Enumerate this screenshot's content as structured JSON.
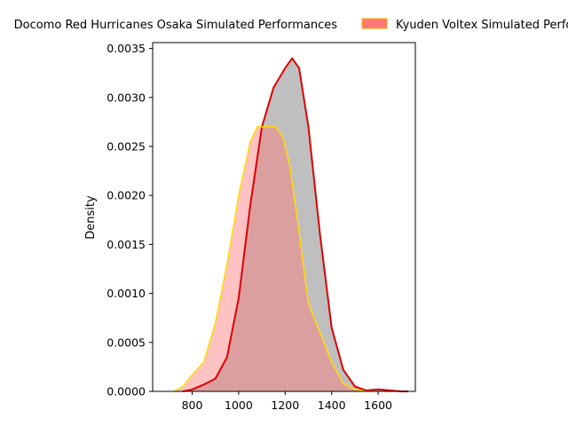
{
  "chart_data": {
    "type": "area",
    "xlabel": "",
    "ylabel": "Density",
    "xlim": [
      630,
      1760
    ],
    "ylim": [
      0,
      0.00356
    ],
    "xticks": [
      800,
      1000,
      1200,
      1400,
      1600
    ],
    "xtick_labels": [
      "800",
      "1000",
      "1200",
      "1400",
      "1600"
    ],
    "yticks": [
      0,
      0.0005,
      0.001,
      0.0015,
      0.002,
      0.0025,
      0.003,
      0.0035
    ],
    "ytick_labels": [
      "0.0000",
      "0.0005",
      "0.0010",
      "0.0015",
      "0.0020",
      "0.0025",
      "0.0030",
      "0.0035"
    ],
    "grid": false,
    "legend_position": "top (above plot)",
    "series": [
      {
        "name": "Docomo Red Hurricanes Osaka Simulated Performances",
        "fill_color": "#a9a9a9",
        "line_color": "#dd0000",
        "x": [
          760,
          800,
          850,
          900,
          950,
          1000,
          1050,
          1100,
          1150,
          1200,
          1230,
          1260,
          1300,
          1350,
          1400,
          1450,
          1500,
          1550,
          1600,
          1650,
          1700,
          1730
        ],
        "y": [
          0,
          2e-05,
          7e-05,
          0.00013,
          0.00035,
          0.00095,
          0.0019,
          0.0027,
          0.0031,
          0.0033,
          0.0034,
          0.0033,
          0.0027,
          0.0016,
          0.00065,
          0.00022,
          5e-05,
          1e-05,
          2e-05,
          1e-05,
          0,
          0
        ]
      },
      {
        "name": "Kyuden Voltex Simulated Performances",
        "fill_color": "#ff7777",
        "line_color": "#ffdd00",
        "x": [
          720,
          760,
          800,
          850,
          900,
          950,
          1000,
          1050,
          1080,
          1100,
          1130,
          1160,
          1190,
          1220,
          1250,
          1300,
          1350,
          1400,
          1450,
          1500,
          1550,
          1580
        ],
        "y": [
          0,
          5e-05,
          0.00017,
          0.0003,
          0.0007,
          0.0013,
          0.002,
          0.00255,
          0.0027,
          0.0027,
          0.0027,
          0.0027,
          0.0026,
          0.0023,
          0.0018,
          0.0009,
          0.0006,
          0.0003,
          8e-05,
          2e-05,
          0,
          0
        ]
      }
    ]
  }
}
